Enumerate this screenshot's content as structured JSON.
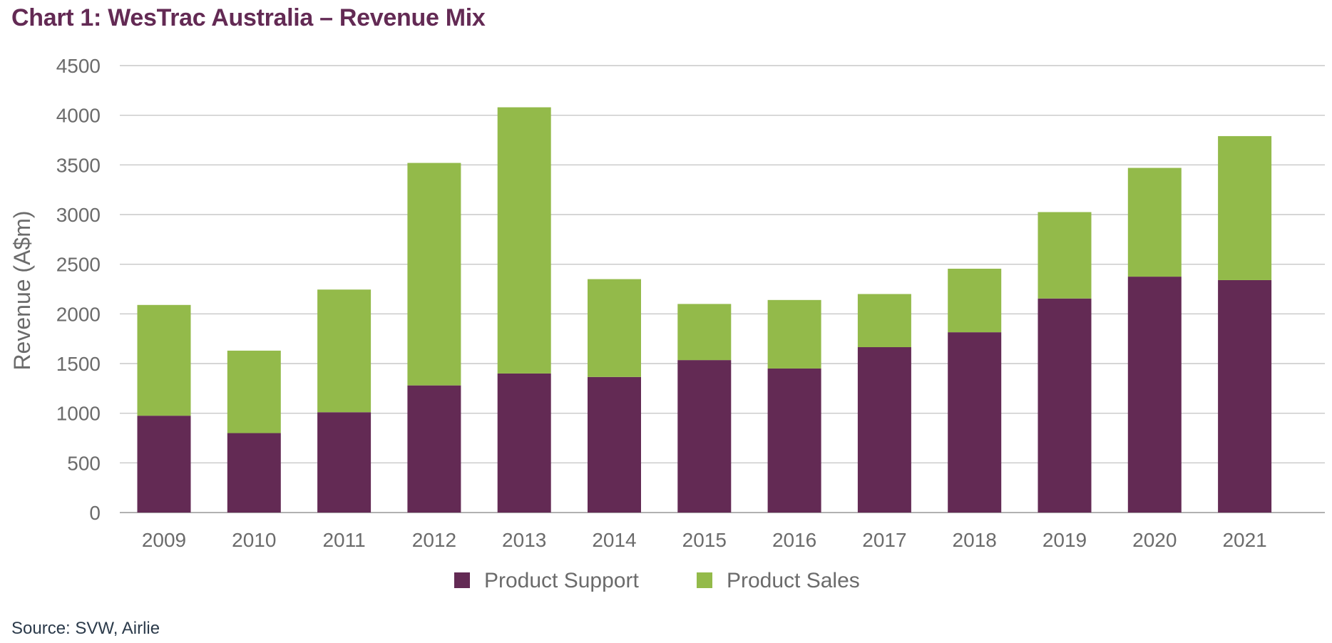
{
  "title": "Chart 1: WesTrac Australia – Revenue Mix",
  "source": "Source: SVW, Airlie",
  "chart_data": {
    "type": "bar",
    "stacked": true,
    "categories": [
      "2009",
      "2010",
      "2011",
      "2012",
      "2013",
      "2014",
      "2015",
      "2016",
      "2017",
      "2018",
      "2019",
      "2020",
      "2021"
    ],
    "series": [
      {
        "name": "Product Support",
        "color": "#632a54",
        "values": [
          975,
          800,
          1010,
          1280,
          1400,
          1365,
          1535,
          1450,
          1665,
          1815,
          2155,
          2375,
          2340
        ]
      },
      {
        "name": "Product Sales",
        "color": "#93ba4a",
        "values": [
          1115,
          830,
          1235,
          2240,
          2680,
          985,
          565,
          690,
          535,
          640,
          870,
          1095,
          1450
        ]
      }
    ],
    "ylabel": "Revenue (A$m)",
    "xlabel": "",
    "ylim": [
      0,
      4500
    ],
    "yticks": [
      0,
      500,
      1000,
      1500,
      2000,
      2500,
      3000,
      3500,
      4000,
      4500
    ],
    "grid": true,
    "legend": "bottom-center"
  }
}
